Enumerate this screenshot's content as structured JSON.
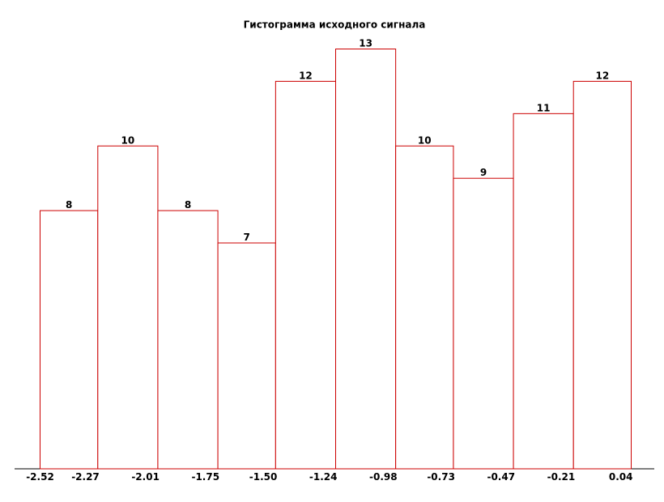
{
  "chart_data": {
    "type": "histogram",
    "title": "Гистограмма исходного сигнала",
    "bins": [
      -2.52,
      -2.27,
      -2.01,
      -1.75,
      -1.5,
      -1.24,
      -0.98,
      -0.73,
      -0.47,
      -0.21,
      0.04
    ],
    "values": [
      8,
      10,
      8,
      7,
      12,
      13,
      10,
      9,
      11,
      12
    ],
    "xticks": [
      -2.52,
      -2.27,
      -2.01,
      -1.75,
      {
        "value": -1.5,
        "label": "-1.50"
      },
      -1.24,
      -0.98,
      -0.73,
      -0.47,
      -0.21,
      0.04
    ],
    "color": "#cc0000"
  }
}
